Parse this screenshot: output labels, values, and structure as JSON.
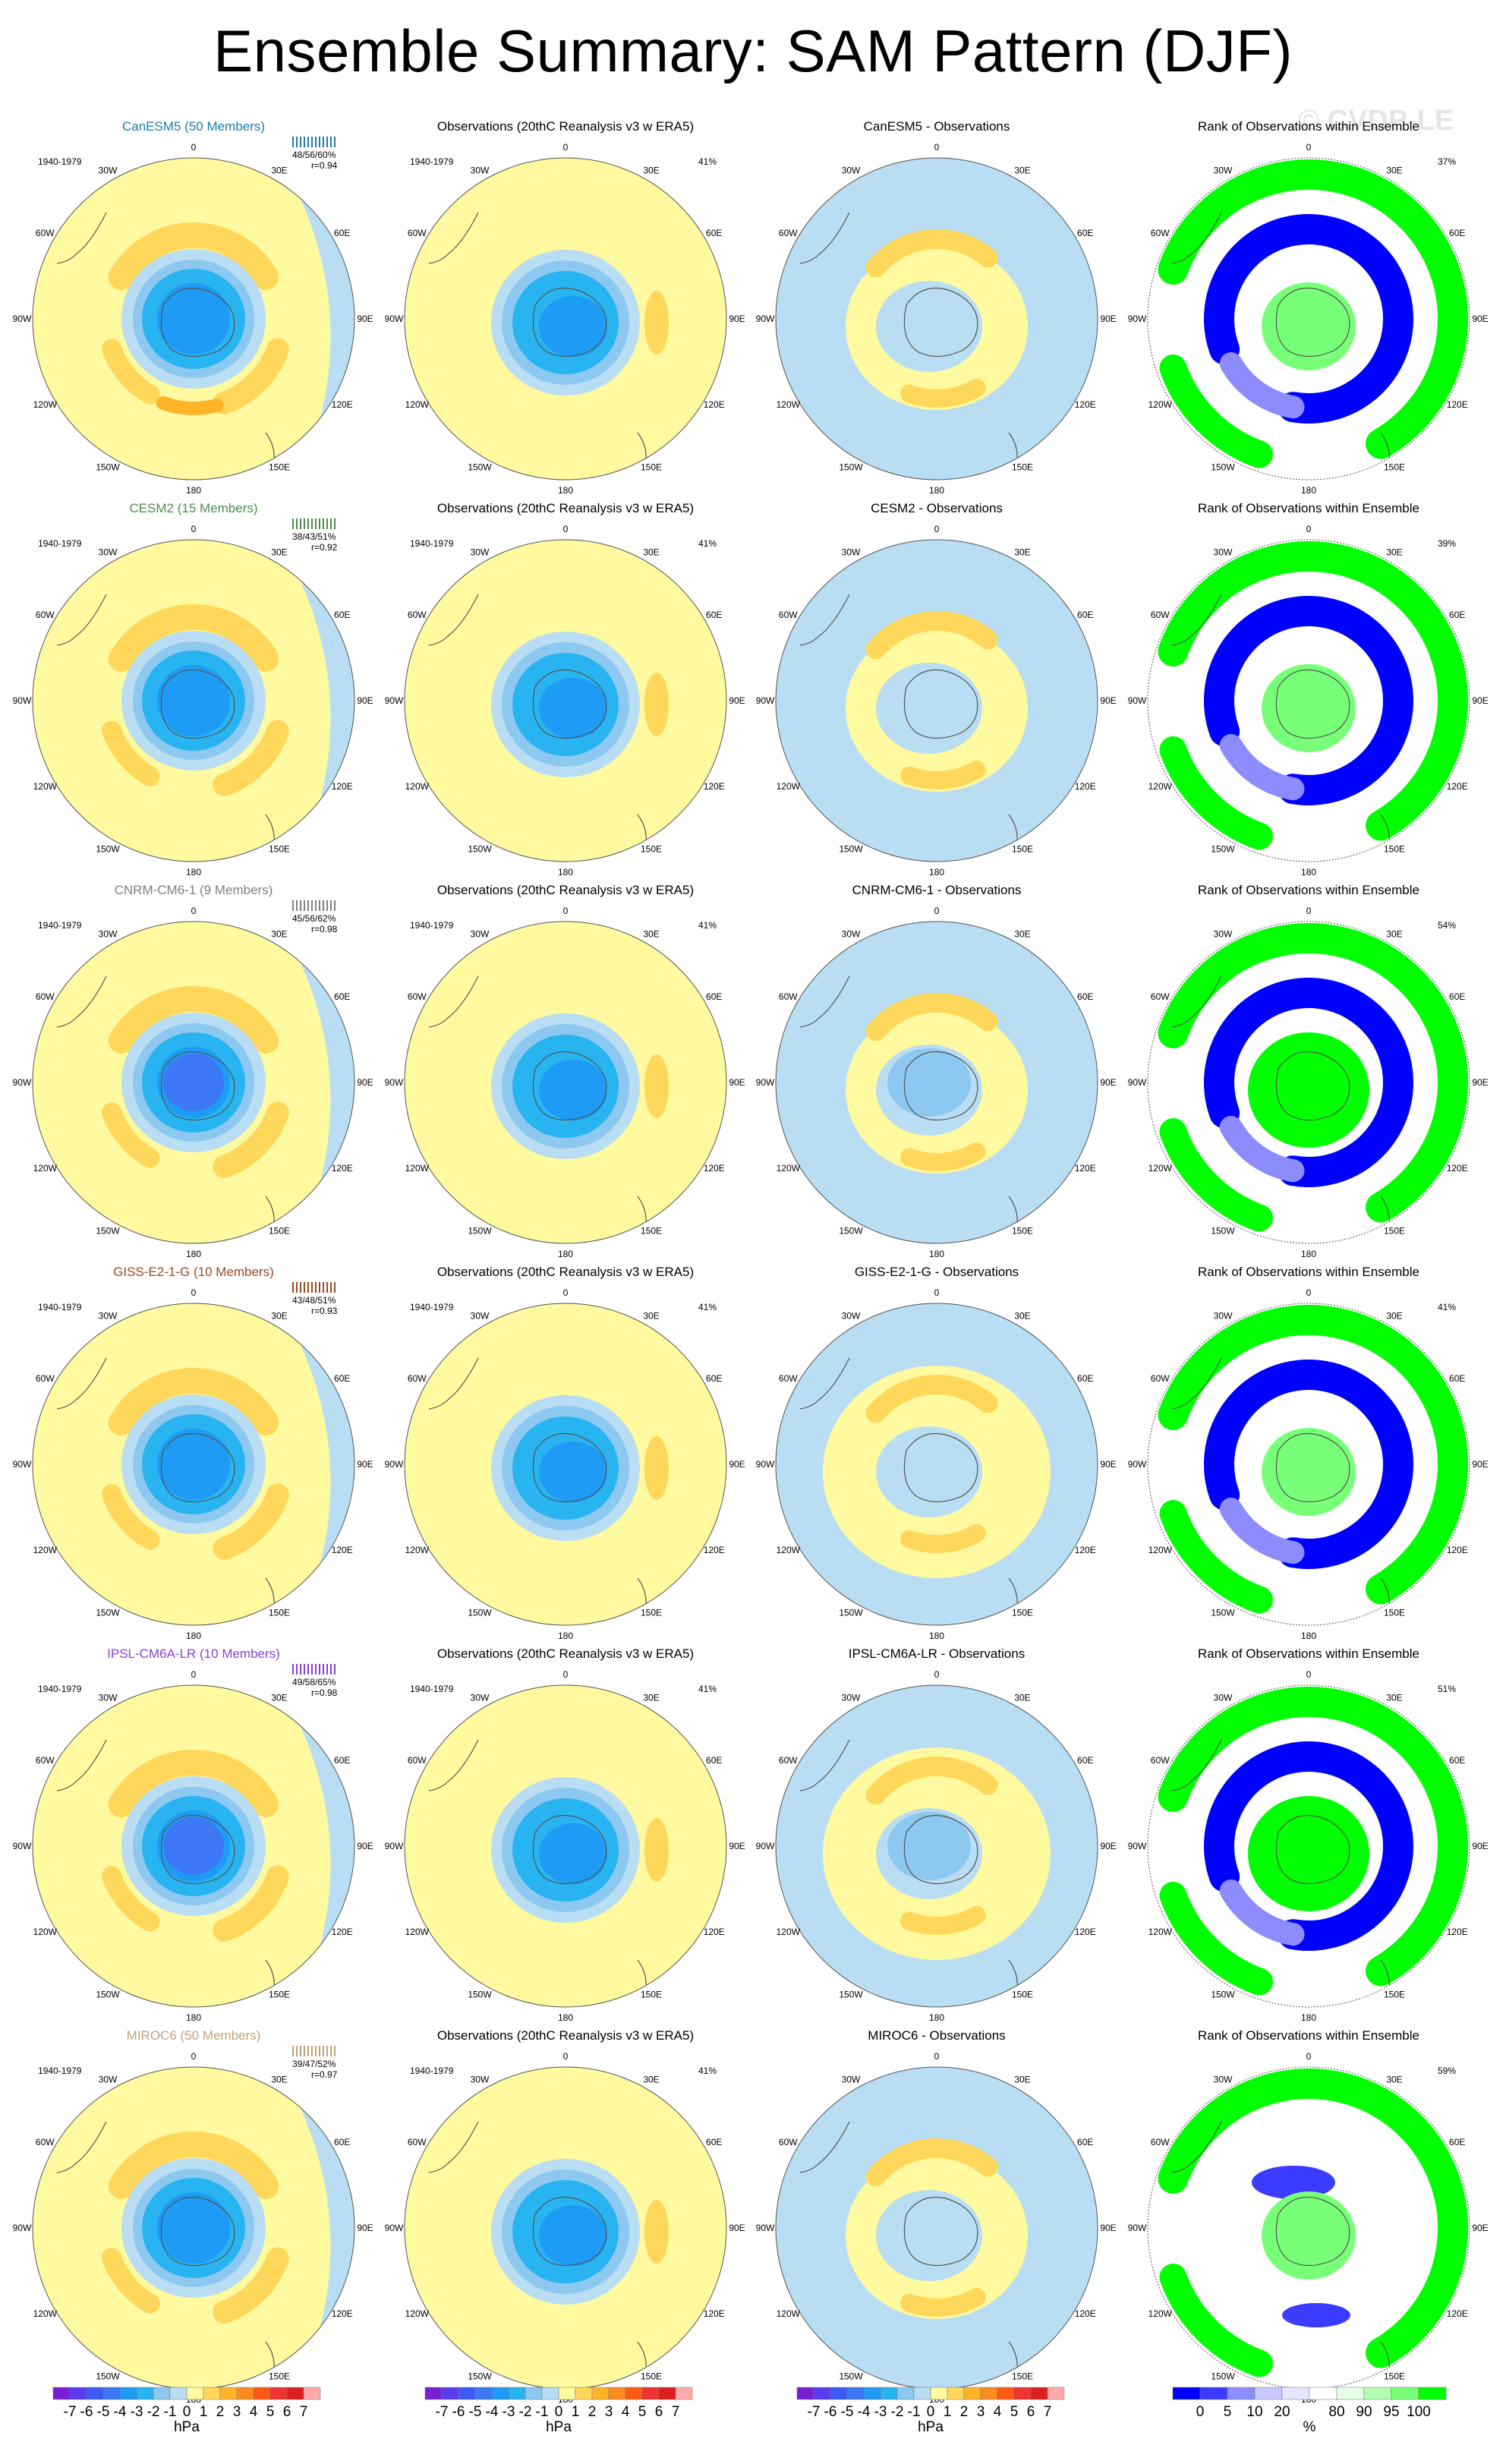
{
  "title": "Ensemble Summary: SAM Pattern (DJF)",
  "watermark": "© CVDP-LE",
  "period": "1940-1979",
  "obs_title": "Observations (20thC Reanalysis v3 w ERA5)",
  "rank_title": "Rank of Observations within Ensemble",
  "obs_pct": "41%",
  "lon_labels": [
    "0",
    "30E",
    "60E",
    "90E",
    "120E",
    "150E",
    "180",
    "150W",
    "120W",
    "90W",
    "60W",
    "30W"
  ],
  "unit_hpa": "hPa",
  "unit_pct": "%",
  "colors": {
    "pressure_palette": [
      "#7a1fd6",
      "#5a3cf0",
      "#3c5af5",
      "#3c78f5",
      "#1e9bf5",
      "#28b4f0",
      "#8cc8ef",
      "#b9ddf2",
      "#fffaa0",
      "#ffd75a",
      "#ffb428",
      "#ff8c1e",
      "#ff5a14",
      "#f03232",
      "#dc1e1e",
      "#ffaaaa"
    ],
    "rank_palette": [
      "#0000ff",
      "#3c3cff",
      "#8c8cff",
      "#c8c8ff",
      "#e6e6ff",
      "#ffffff",
      "#e6ffe6",
      "#b4ffb4",
      "#78ff78",
      "#00ff00"
    ]
  },
  "colorbar_pressure": [
    "-7",
    "-6",
    "-5",
    "-4",
    "-3",
    "-2",
    "-1",
    "0",
    "1",
    "2",
    "3",
    "4",
    "5",
    "6",
    "7"
  ],
  "colorbar_rank": [
    "0",
    "5",
    "10",
    "20",
    "80",
    "90",
    "95",
    "100"
  ],
  "chart_data": {
    "type": "heatmap",
    "description_units": "hPa",
    "rows": [
      {
        "model": "CanESM5",
        "members": "(50 Members)",
        "color": "#1e7aa8",
        "stats": "48/56/60%",
        "r": "r=0.94",
        "rank_pct": "37%",
        "diff_title": "CanESM5 - Observations"
      },
      {
        "model": "CESM2",
        "members": "(15 Members)",
        "color": "#4c8c4c",
        "stats": "38/43/51%",
        "r": "r=0.92",
        "rank_pct": "39%",
        "diff_title": "CESM2 - Observations"
      },
      {
        "model": "CNRM-CM6-1",
        "members": "(9 Members)",
        "color": "#7f7f7f",
        "stats": "45/56/62%",
        "r": "r=0.98",
        "rank_pct": "54%",
        "diff_title": "CNRM-CM6-1 - Observations"
      },
      {
        "model": "GISS-E2-1-G",
        "members": "(10 Members)",
        "color": "#9c4a1e",
        "stats": "43/48/51%",
        "r": "r=0.93",
        "rank_pct": "41%",
        "diff_title": "GISS-E2-1-G - Observations"
      },
      {
        "model": "IPSL-CM6A-LR",
        "members": "(10 Members)",
        "color": "#8b3fd6",
        "stats": "49/58/65%",
        "r": "r=0.98",
        "rank_pct": "51%",
        "diff_title": "IPSL-CM6A-LR - Observations"
      },
      {
        "model": "MIROC6",
        "members": "(50 Members)",
        "color": "#c4a07a",
        "stats": "39/47/52%",
        "r": "r=0.97",
        "rank_pct": "59%",
        "diff_title": "MIROC6 - Observations"
      }
    ]
  }
}
